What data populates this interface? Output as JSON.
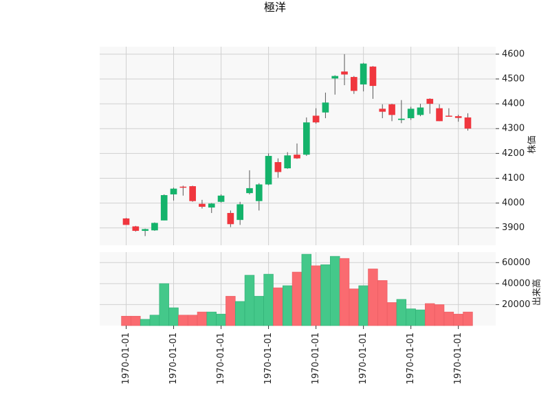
{
  "chart_data": {
    "type": "candlestick",
    "title": "極洋",
    "x_tick_labels": [
      "1970-01-01",
      "1970-01-01",
      "1970-01-01",
      "1970-01-01",
      "1970-01-01",
      "1970-01-01",
      "1970-01-01",
      "1970-01-01"
    ],
    "price_panel": {
      "ylabel": "株価",
      "ylim": [
        3830,
        4630
      ],
      "ticks": [
        3900,
        4000,
        4100,
        4200,
        4300,
        4400,
        4500,
        4600
      ]
    },
    "volume_panel": {
      "ylabel": "出来高",
      "ylim": [
        0,
        70000
      ],
      "ticks": [
        20000,
        40000,
        60000
      ],
      "tick_labels": [
        "20000",
        "40000",
        "60000"
      ]
    },
    "colors": {
      "up": "#14b36b",
      "down": "#f0363e",
      "up_volume": "#44c88a",
      "down_volume": "#fa6b70",
      "grid": "#d0d0d0",
      "panel_bg": "#f8f8f8"
    },
    "candles": [
      {
        "open": 3938,
        "high": 3940,
        "low": 3912,
        "close": 3912,
        "volume": 9000
      },
      {
        "open": 3906,
        "high": 3908,
        "low": 3885,
        "close": 3888,
        "volume": 9000
      },
      {
        "open": 3888,
        "high": 3897,
        "low": 3867,
        "close": 3895,
        "volume": 6000
      },
      {
        "open": 3890,
        "high": 3922,
        "low": 3888,
        "close": 3920,
        "volume": 10000
      },
      {
        "open": 3930,
        "high": 4035,
        "low": 3930,
        "close": 4032,
        "volume": 40000
      },
      {
        "open": 4035,
        "high": 4062,
        "low": 4010,
        "close": 4058,
        "volume": 17000
      },
      {
        "open": 4066,
        "high": 4070,
        "low": 4030,
        "close": 4062,
        "volume": 10000
      },
      {
        "open": 4068,
        "high": 4070,
        "low": 4005,
        "close": 4008,
        "volume": 10000
      },
      {
        "open": 3997,
        "high": 4013,
        "low": 3978,
        "close": 3985,
        "volume": 13000
      },
      {
        "open": 3982,
        "high": 4000,
        "low": 3960,
        "close": 3998,
        "volume": 13000
      },
      {
        "open": 4005,
        "high": 4035,
        "low": 4002,
        "close": 4030,
        "volume": 11000
      },
      {
        "open": 3960,
        "high": 3970,
        "low": 3903,
        "close": 3915,
        "volume": 28000
      },
      {
        "open": 3932,
        "high": 4005,
        "low": 3912,
        "close": 3995,
        "volume": 23000
      },
      {
        "open": 4040,
        "high": 4132,
        "low": 4035,
        "close": 4060,
        "volume": 48000
      },
      {
        "open": 4008,
        "high": 4080,
        "low": 3970,
        "close": 4075,
        "volume": 28000
      },
      {
        "open": 4075,
        "high": 4200,
        "low": 4072,
        "close": 4190,
        "volume": 49000
      },
      {
        "open": 4165,
        "high": 4180,
        "low": 4102,
        "close": 4125,
        "volume": 36000
      },
      {
        "open": 4140,
        "high": 4205,
        "low": 4138,
        "close": 4192,
        "volume": 38000
      },
      {
        "open": 4195,
        "high": 4240,
        "low": 4178,
        "close": 4180,
        "volume": 51000
      },
      {
        "open": 4195,
        "high": 4345,
        "low": 4190,
        "close": 4325,
        "volume": 68000
      },
      {
        "open": 4352,
        "high": 4382,
        "low": 4320,
        "close": 4325,
        "volume": 57000
      },
      {
        "open": 4365,
        "high": 4445,
        "low": 4342,
        "close": 4405,
        "volume": 58000
      },
      {
        "open": 4502,
        "high": 4515,
        "low": 4437,
        "close": 4512,
        "volume": 66000
      },
      {
        "open": 4530,
        "high": 4600,
        "low": 4475,
        "close": 4518,
        "volume": 64000
      },
      {
        "open": 4508,
        "high": 4512,
        "low": 4440,
        "close": 4452,
        "volume": 35000
      },
      {
        "open": 4478,
        "high": 4565,
        "low": 4450,
        "close": 4562,
        "volume": 38000
      },
      {
        "open": 4550,
        "high": 4552,
        "low": 4420,
        "close": 4472,
        "volume": 54000
      },
      {
        "open": 4380,
        "high": 4398,
        "low": 4342,
        "close": 4368,
        "volume": 43000
      },
      {
        "open": 4398,
        "high": 4400,
        "low": 4330,
        "close": 4355,
        "volume": 22000
      },
      {
        "open": 4335,
        "high": 4415,
        "low": 4322,
        "close": 4340,
        "volume": 25000
      },
      {
        "open": 4342,
        "high": 4388,
        "low": 4335,
        "close": 4380,
        "volume": 16000
      },
      {
        "open": 4355,
        "high": 4400,
        "low": 4350,
        "close": 4385,
        "volume": 15000
      },
      {
        "open": 4420,
        "high": 4422,
        "low": 4360,
        "close": 4400,
        "volume": 21000
      },
      {
        "open": 4382,
        "high": 4398,
        "low": 4330,
        "close": 4330,
        "volume": 20000
      },
      {
        "open": 4352,
        "high": 4382,
        "low": 4348,
        "close": 4350,
        "volume": 13000
      },
      {
        "open": 4350,
        "high": 4356,
        "low": 4328,
        "close": 4343,
        "volume": 11000
      },
      {
        "open": 4345,
        "high": 4362,
        "low": 4292,
        "close": 4300,
        "volume": 13000
      }
    ]
  }
}
